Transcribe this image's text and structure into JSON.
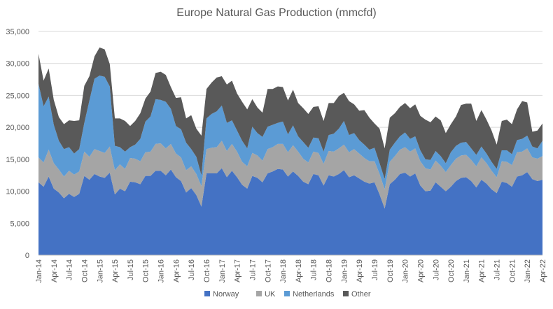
{
  "chart_data": {
    "type": "area",
    "stacked": true,
    "title": "Europe Natural Gas Production (mmcfd)",
    "xlabel": "",
    "ylabel": "",
    "ylim": [
      0,
      35000
    ],
    "yticks": [
      "0",
      "5,000",
      "10,000",
      "15,000",
      "20,000",
      "25,000",
      "30,000",
      "35,000"
    ],
    "ytick_values": [
      0,
      5000,
      10000,
      15000,
      20000,
      25000,
      30000,
      35000
    ],
    "grid": true,
    "legend_position": "bottom",
    "x": [
      "Jan-14",
      "Feb-14",
      "Mar-14",
      "Apr-14",
      "May-14",
      "Jun-14",
      "Jul-14",
      "Aug-14",
      "Sep-14",
      "Oct-14",
      "Nov-14",
      "Dec-14",
      "Jan-15",
      "Feb-15",
      "Mar-15",
      "Apr-15",
      "May-15",
      "Jun-15",
      "Jul-15",
      "Aug-15",
      "Sep-15",
      "Oct-15",
      "Nov-15",
      "Dec-15",
      "Jan-16",
      "Feb-16",
      "Mar-16",
      "Apr-16",
      "May-16",
      "Jun-16",
      "Jul-16",
      "Aug-16",
      "Sep-16",
      "Oct-16",
      "Nov-16",
      "Dec-16",
      "Jan-17",
      "Feb-17",
      "Mar-17",
      "Apr-17",
      "May-17",
      "Jun-17",
      "Jul-17",
      "Aug-17",
      "Sep-17",
      "Oct-17",
      "Nov-17",
      "Dec-17",
      "Jan-18",
      "Feb-18",
      "Mar-18",
      "Apr-18",
      "May-18",
      "Jun-18",
      "Jul-18",
      "Aug-18",
      "Sep-18",
      "Oct-18",
      "Nov-18",
      "Dec-18",
      "Jan-19",
      "Feb-19",
      "Mar-19",
      "Apr-19",
      "May-19",
      "Jun-19",
      "Jul-19",
      "Aug-19",
      "Sep-19",
      "Oct-19",
      "Nov-19",
      "Dec-19",
      "Jan-20",
      "Feb-20",
      "Mar-20",
      "Apr-20",
      "May-20",
      "Jun-20",
      "Jul-20",
      "Aug-20",
      "Sep-20",
      "Oct-20",
      "Nov-20",
      "Dec-20",
      "Jan-21",
      "Feb-21",
      "Mar-21",
      "Apr-21",
      "May-21",
      "Jun-21",
      "Jul-21",
      "Aug-21",
      "Sep-21",
      "Oct-21",
      "Nov-21",
      "Dec-21",
      "Jan-22",
      "Feb-22",
      "Mar-22",
      "Apr-22"
    ],
    "x_tick_labels": [
      "Jan-14",
      "Apr-14",
      "Jul-14",
      "Oct-14",
      "Jan-15",
      "Apr-15",
      "Jul-15",
      "Oct-15",
      "Jan-16",
      "Apr-16",
      "Jul-16",
      "Oct-16",
      "Jan-17",
      "Apr-17",
      "Jul-17",
      "Oct-17",
      "Jan-18",
      "Apr-18",
      "Jul-18",
      "Oct-18",
      "Jan-19",
      "Apr-19",
      "Jul-19",
      "Oct-19",
      "Jan-20",
      "Apr-20",
      "Jul-20",
      "Oct-20",
      "Jan-21",
      "Apr-21",
      "Jul-21",
      "Oct-21",
      "Jan-22",
      "Apr-22"
    ],
    "series": [
      {
        "name": "Norway",
        "color": "#4472c4",
        "values": [
          11400,
          10700,
          12300,
          10400,
          9800,
          8900,
          9600,
          9100,
          9600,
          12400,
          11800,
          12700,
          12300,
          12100,
          12900,
          9500,
          10400,
          10000,
          11500,
          11400,
          11100,
          12400,
          12400,
          13200,
          13200,
          12500,
          13400,
          12200,
          11600,
          9800,
          10500,
          9400,
          7600,
          12800,
          12800,
          12800,
          13600,
          12200,
          13200,
          12200,
          11000,
          10400,
          12400,
          12100,
          11400,
          12800,
          13100,
          13500,
          13400,
          12300,
          13100,
          12400,
          11500,
          11100,
          12700,
          12500,
          10900,
          12500,
          12300,
          12700,
          13300,
          12200,
          12500,
          12000,
          11500,
          11200,
          11400,
          9500,
          7300,
          11100,
          11800,
          12700,
          12900,
          12300,
          12800,
          10900,
          10000,
          10100,
          11400,
          10700,
          10000,
          10700,
          11600,
          12100,
          12200,
          11600,
          10600,
          11800,
          11200,
          10300,
          9700,
          11500,
          11300,
          10700,
          12300,
          12500,
          13000,
          11900,
          11600,
          11800
        ]
      },
      {
        "name": "UK",
        "color": "#a5a5a5",
        "values": [
          3900,
          3800,
          4200,
          4000,
          3600,
          3400,
          3600,
          3500,
          3500,
          3800,
          3600,
          3900,
          4000,
          3900,
          4100,
          3800,
          3800,
          3500,
          3700,
          3700,
          3600,
          3700,
          3800,
          4200,
          4300,
          4200,
          4000,
          3700,
          3700,
          3500,
          3400,
          3300,
          3200,
          3800,
          4000,
          4100,
          4300,
          4100,
          4200,
          4000,
          3600,
          3500,
          3600,
          3500,
          3400,
          3800,
          3800,
          3900,
          4000,
          3800,
          4100,
          3800,
          3600,
          3400,
          3500,
          3500,
          3400,
          3800,
          3900,
          4000,
          4000,
          3900,
          4100,
          3900,
          3700,
          3500,
          3300,
          3200,
          3000,
          3500,
          3700,
          3800,
          4000,
          3900,
          3900,
          3800,
          3600,
          3300,
          3400,
          3300,
          3000,
          3400,
          3500,
          3500,
          3500,
          3300,
          3300,
          3500,
          3200,
          2900,
          2500,
          3200,
          3300,
          3400,
          3800,
          3700,
          3700,
          3400,
          3500,
          3700
        ]
      },
      {
        "name": "Netherlands",
        "color": "#5b9bd5",
        "values": [
          11500,
          8800,
          8300,
          6000,
          4500,
          4300,
          3700,
          3300,
          3500,
          4500,
          8800,
          11000,
          11800,
          11900,
          9400,
          3800,
          2700,
          2700,
          1700,
          2200,
          3500,
          4800,
          5500,
          7000,
          6800,
          7300,
          5500,
          4300,
          4400,
          4300,
          2700,
          2700,
          1700,
          4800,
          5300,
          5600,
          5500,
          4400,
          3700,
          3300,
          3300,
          2800,
          4100,
          3500,
          3700,
          3500,
          3500,
          3300,
          3500,
          2800,
          3100,
          2400,
          2600,
          2300,
          2200,
          2300,
          1900,
          2500,
          2800,
          3100,
          3700,
          2700,
          2500,
          2100,
          2100,
          1800,
          2100,
          1700,
          1600,
          1900,
          2100,
          2100,
          2300,
          2000,
          1900,
          1700,
          1400,
          1500,
          1500,
          1500,
          1400,
          2000,
          2000,
          2000,
          2000,
          1800,
          1800,
          1700,
          1500,
          1400,
          1300,
          1700,
          1800,
          1700,
          1900,
          2000,
          2000,
          1700,
          1600,
          2400
        ]
      },
      {
        "name": "Other",
        "color": "#595959",
        "values": [
          4700,
          4000,
          4400,
          3900,
          3700,
          3900,
          4200,
          5100,
          4500,
          5800,
          3800,
          3500,
          4400,
          4300,
          3500,
          4300,
          4500,
          4800,
          3300,
          3700,
          4000,
          3600,
          3900,
          4100,
          4400,
          4200,
          3400,
          4400,
          5000,
          3800,
          5300,
          4400,
          6200,
          4600,
          4900,
          5300,
          4600,
          6000,
          6200,
          5800,
          6100,
          6100,
          4300,
          4000,
          3800,
          5900,
          5600,
          5700,
          5400,
          5300,
          5600,
          5200,
          5300,
          5300,
          4800,
          5000,
          4800,
          5000,
          4800,
          5100,
          4400,
          5300,
          4500,
          4600,
          5400,
          5000,
          3800,
          5400,
          4800,
          5000,
          4600,
          4600,
          4600,
          4800,
          5000,
          5400,
          6200,
          5900,
          5400,
          5600,
          4700,
          4400,
          4600,
          5900,
          6000,
          7000,
          5300,
          5700,
          5300,
          4900,
          3800,
          4600,
          4800,
          4700,
          4800,
          5900,
          5200,
          2300,
          2800,
          2700
        ]
      }
    ]
  }
}
